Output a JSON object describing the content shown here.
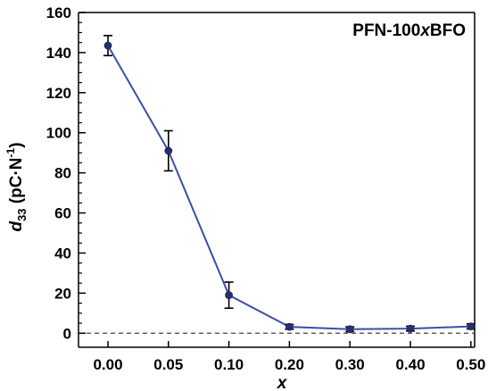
{
  "chart_data": {
    "type": "line",
    "title_parts": [
      "PFN-100",
      "x",
      "BFO"
    ],
    "xlabel": "x",
    "ylabel_parts": [
      "d",
      "33",
      " (pC·N",
      "-1",
      ")"
    ],
    "categories": [
      "0.00",
      "0.05",
      "0.10",
      "0.20",
      "0.30",
      "0.40",
      "0.50"
    ],
    "y_ticks": [
      "0",
      "20",
      "40",
      "60",
      "80",
      "100",
      "120",
      "140",
      "160"
    ],
    "ylim": [
      -7,
      160
    ],
    "reference_line": 0,
    "series": [
      {
        "values": [
          143.5,
          91,
          19,
          3.2,
          2,
          2.3,
          3.4
        ],
        "error": [
          5,
          10,
          6.5,
          1.2,
          1.2,
          1.2,
          1.3
        ],
        "color": "#3a4fa8"
      }
    ],
    "grid": false
  }
}
